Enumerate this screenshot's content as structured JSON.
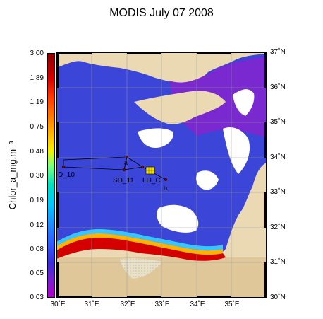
{
  "title": "MODIS July 07 2008",
  "colorbar": {
    "label": "Chlor_a_mg.m⁻³",
    "ticks": [
      "3.00",
      "1.89",
      "1.19",
      "0.75",
      "0.48",
      "0.30",
      "0.19",
      "0.12",
      "0.08",
      "0.05",
      "0.03"
    ]
  },
  "map": {
    "lon_labels": [
      "30˚E",
      "31˚E",
      "32˚E",
      "33˚E",
      "34˚E",
      "35˚E"
    ],
    "lat_labels": [
      "37˚N",
      "36˚N",
      "35˚N",
      "34˚N",
      "33˚N",
      "32˚N",
      "31˚N",
      "30˚N"
    ],
    "stations": {
      "d10": "D_10",
      "sd11": "SD_11",
      "ldc": "LD_C",
      "a": "a",
      "b": "b"
    },
    "colors": {
      "land": "#e9d8b0",
      "sea_low": "#3a3ad6",
      "sea_mid": "#6a2bd0",
      "coast_high": "#d40000",
      "no_data": "#ffffff"
    }
  }
}
